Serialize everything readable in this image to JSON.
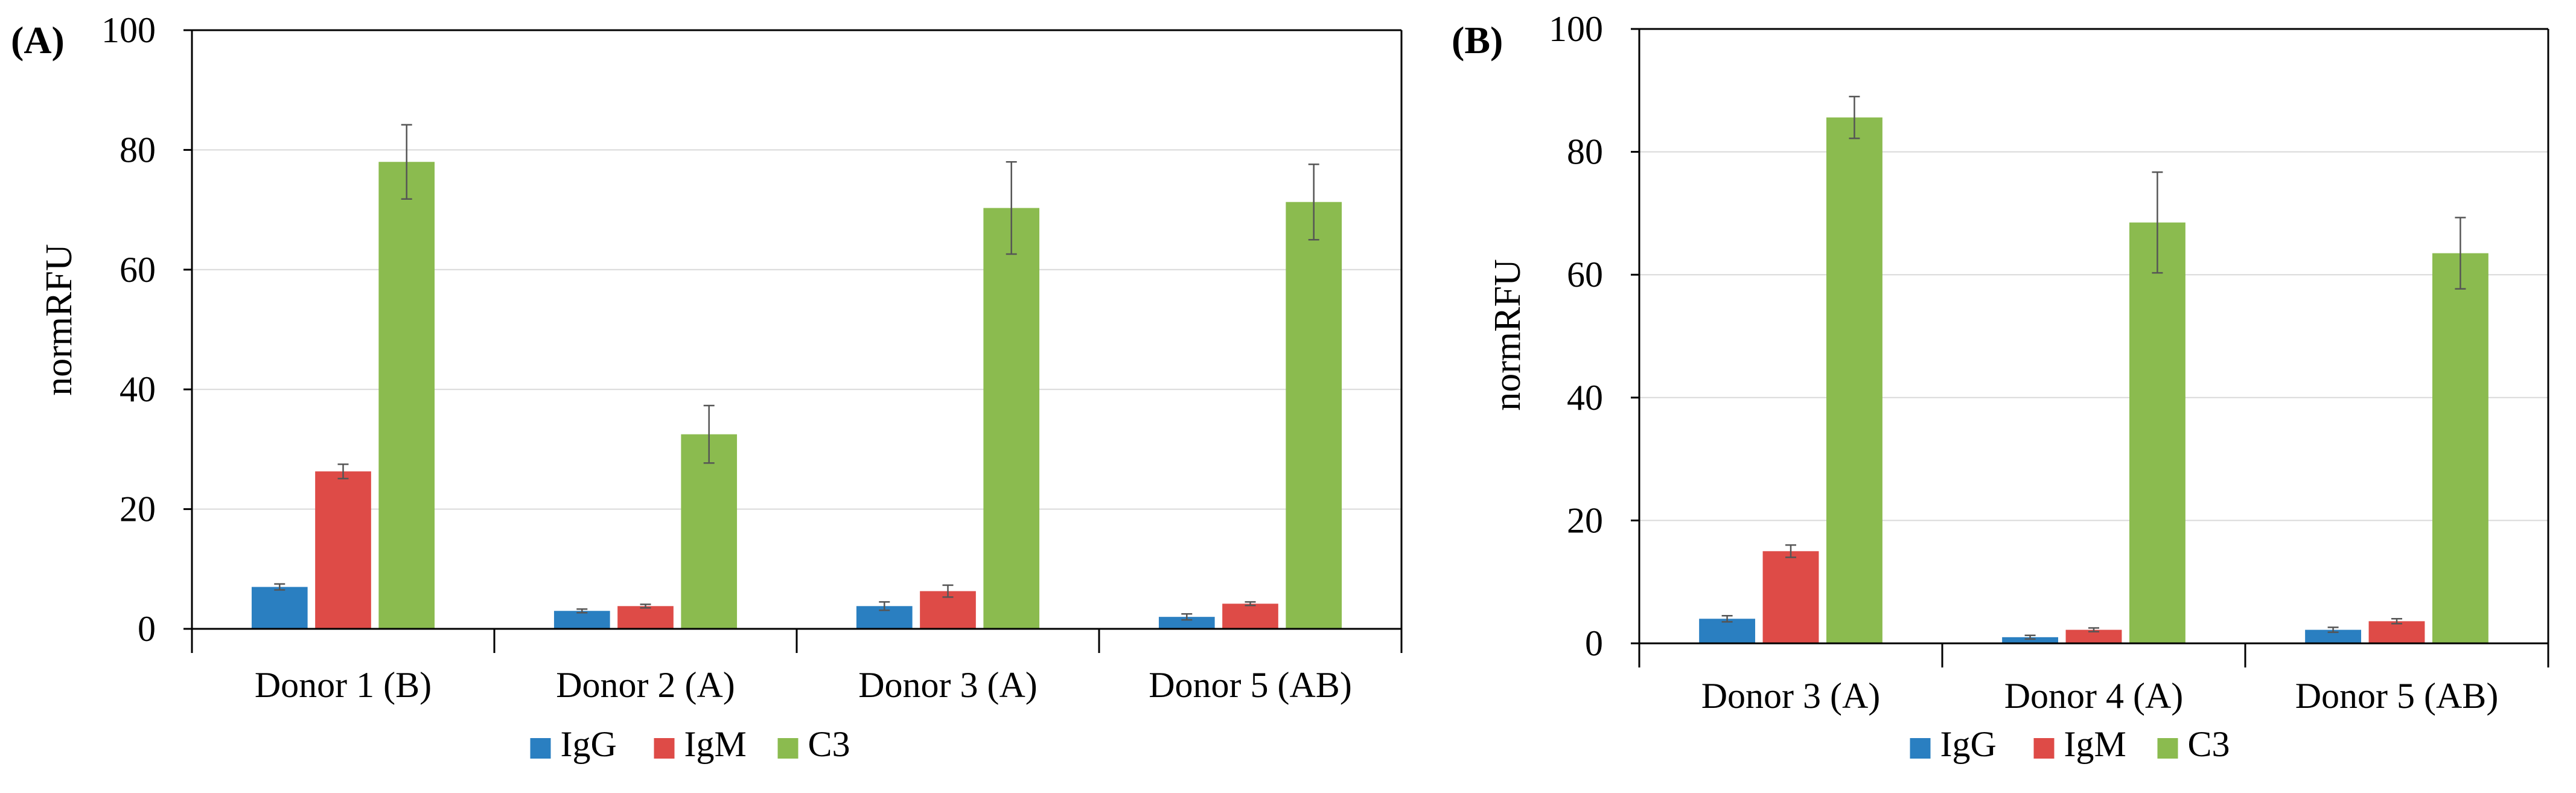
{
  "colors": {
    "IgG": "#2a7fc1",
    "IgM": "#de4b47",
    "C3": "#8bbb4f",
    "axis": "#000000",
    "grid": "#d9d9d9",
    "errorbar": "#555555"
  },
  "chart_data": [
    {
      "type": "bar",
      "panel_label": "(A)",
      "title": "",
      "xlabel": "",
      "ylabel": "normRFU",
      "ylim": [
        0,
        100
      ],
      "yticks": [
        "0",
        "20",
        "40",
        "60",
        "80",
        "100"
      ],
      "grid": true,
      "legend_position": "bottom-center",
      "categories": [
        "Donor 1 (B)",
        "Donor 2 (A)",
        "Donor 3 (A)",
        "Donor 5 (AB)"
      ],
      "series": [
        {
          "name": "IgG",
          "values": [
            7.0,
            3.0,
            3.8,
            2.0
          ],
          "errors": [
            0.5,
            0.3,
            0.7,
            0.5
          ]
        },
        {
          "name": "IgM",
          "values": [
            26.3,
            3.8,
            6.3,
            4.2
          ],
          "errors": [
            1.2,
            0.3,
            1.0,
            0.3
          ]
        },
        {
          "name": "C3",
          "values": [
            78.0,
            32.5,
            70.3,
            71.3
          ],
          "errors": [
            6.2,
            4.8,
            7.7,
            6.3
          ]
        }
      ]
    },
    {
      "type": "bar",
      "panel_label": "(B)",
      "title": "",
      "xlabel": "",
      "ylabel": "normRFU",
      "ylim": [
        0,
        100
      ],
      "yticks": [
        "0",
        "20",
        "40",
        "60",
        "80",
        "100"
      ],
      "grid": true,
      "legend_position": "bottom-center",
      "categories": [
        "Donor 3 (A)",
        "Donor 4 (A)",
        "Donor 5 (AB)"
      ],
      "series": [
        {
          "name": "IgG",
          "values": [
            4.0,
            1.0,
            2.2
          ],
          "errors": [
            0.5,
            0.3,
            0.4
          ]
        },
        {
          "name": "IgM",
          "values": [
            15.0,
            2.2,
            3.6
          ],
          "errors": [
            1.0,
            0.3,
            0.4
          ]
        },
        {
          "name": "C3",
          "values": [
            85.6,
            68.5,
            63.5
          ],
          "errors": [
            3.4,
            8.2,
            5.8
          ]
        }
      ]
    }
  ]
}
